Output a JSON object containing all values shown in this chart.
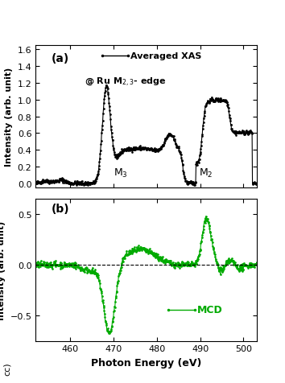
{
  "title_a": "(a)",
  "title_b": "(b)",
  "legend_a": "Averaged XAS",
  "legend_b": "MCD",
  "xlabel": "Photon Energy (eV)",
  "ylabel": "Intensity (arb. unit)",
  "xmin": 452,
  "xmax": 503,
  "ylim_a": [
    -0.05,
    1.65
  ],
  "ylim_b": [
    -0.75,
    0.65
  ],
  "yticks_a": [
    0.0,
    0.2,
    0.4,
    0.6,
    0.8,
    1.0,
    1.2,
    1.4,
    1.6
  ],
  "yticks_b": [
    -0.5,
    0.0,
    0.5
  ],
  "xticks": [
    460,
    470,
    480,
    490,
    500
  ],
  "color_a": "#000000",
  "color_b": "#00aa00",
  "bg_color": "#ffffff",
  "cc_label": "cc)"
}
